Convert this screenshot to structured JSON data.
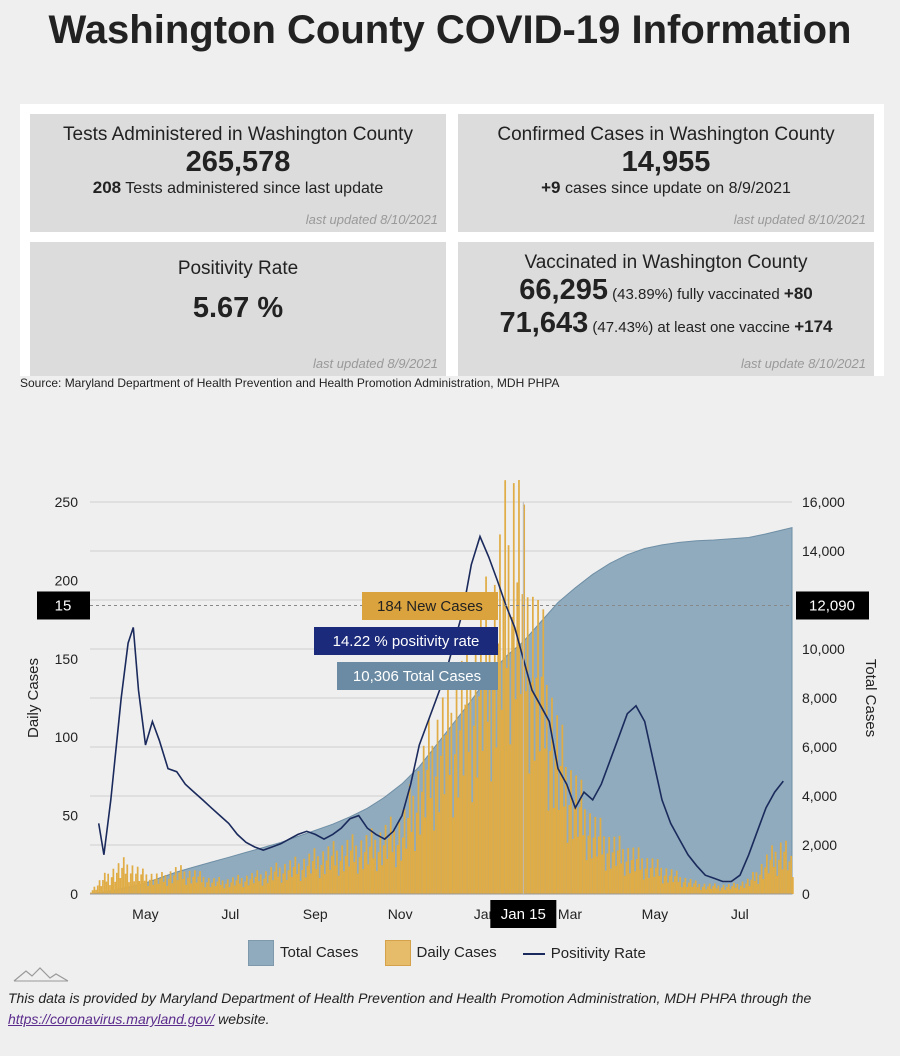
{
  "title": "Washington County COVID-19 Information",
  "cards": {
    "tests": {
      "title": "Tests Administered in Washington County",
      "value": "265,578",
      "delta": "208",
      "delta_text": "Tests administered since last update",
      "updated": "last updated 8/10/2021"
    },
    "cases": {
      "title": "Confirmed Cases in Washington County",
      "value": "14,955",
      "delta": "+9",
      "delta_text": "cases since update on 8/9/2021",
      "updated": "last updated 8/10/2021"
    },
    "positivity": {
      "title": "Positivity Rate",
      "value": "5.67 %",
      "updated": "last updated 8/9/2021"
    },
    "vaccinated": {
      "title": "Vaccinated in Washington County",
      "full_value": "66,295",
      "full_pct": "(43.89%)",
      "full_text": "fully vaccinated",
      "full_delta": "+80",
      "one_value": "71,643",
      "one_pct": "(47.43%)",
      "one_text": "at least one vaccine",
      "one_delta": "+174",
      "updated": "last update 8/10/2021"
    }
  },
  "source": "Source: Maryland Department of Health Prevention and Health Promotion Administration, MDH PHPA",
  "chart_data": {
    "type": "line",
    "ylabel": "Daily Cases",
    "y2label": "Total Cases",
    "ylim": [
      0,
      250
    ],
    "y2lim": [
      0,
      16000
    ],
    "y_ticks": [
      "0",
      "50",
      "100",
      "150",
      "200",
      "250"
    ],
    "y2_ticks": [
      "0",
      "2,000",
      "4,000",
      "6,000",
      "8,000",
      "10,000",
      "12,000",
      "14,000",
      "16,000"
    ],
    "x_ticks": [
      "May",
      "Jul",
      "Sep",
      "Nov",
      "Jan",
      "Mar",
      "May",
      "Jul"
    ],
    "legend": [
      "Total Cases",
      "Daily Cases",
      "Positivity Rate"
    ],
    "legend_placement": "bottom",
    "grid": true,
    "colors": {
      "total": "#8fabbd",
      "daily": "#e0ac45",
      "positivity": "#1b2a5c"
    },
    "series": [
      {
        "name": "Total Cases",
        "type": "area",
        "points": [
          [
            0,
            0
          ],
          [
            10,
            100
          ],
          [
            20,
            250
          ],
          [
            30,
            400
          ],
          [
            40,
            650
          ],
          [
            50,
            900
          ],
          [
            60,
            1100
          ],
          [
            70,
            1300
          ],
          [
            80,
            1500
          ],
          [
            90,
            1700
          ],
          [
            100,
            1900
          ],
          [
            110,
            2100
          ],
          [
            120,
            2350
          ],
          [
            130,
            2600
          ],
          [
            140,
            2850
          ],
          [
            150,
            3150
          ],
          [
            160,
            3500
          ],
          [
            170,
            3950
          ],
          [
            180,
            4500
          ],
          [
            190,
            5200
          ],
          [
            200,
            6100
          ],
          [
            210,
            7000
          ],
          [
            220,
            7900
          ],
          [
            230,
            8900
          ],
          [
            240,
            9700
          ],
          [
            250,
            10300
          ],
          [
            260,
            11100
          ],
          [
            270,
            11900
          ],
          [
            280,
            12500
          ],
          [
            290,
            13050
          ],
          [
            300,
            13500
          ],
          [
            310,
            13850
          ],
          [
            320,
            14100
          ],
          [
            330,
            14250
          ],
          [
            340,
            14350
          ],
          [
            350,
            14420
          ],
          [
            360,
            14450
          ],
          [
            370,
            14500
          ],
          [
            380,
            14550
          ],
          [
            390,
            14700
          ],
          [
            405,
            14955
          ]
        ]
      },
      {
        "name": "Daily Cases",
        "type": "bar",
        "points": [
          [
            0,
            2
          ],
          [
            10,
            12
          ],
          [
            20,
            18
          ],
          [
            30,
            12
          ],
          [
            40,
            10
          ],
          [
            50,
            14
          ],
          [
            60,
            12
          ],
          [
            70,
            8
          ],
          [
            80,
            8
          ],
          [
            90,
            10
          ],
          [
            100,
            12
          ],
          [
            110,
            16
          ],
          [
            120,
            18
          ],
          [
            130,
            22
          ],
          [
            140,
            25
          ],
          [
            150,
            28
          ],
          [
            160,
            30
          ],
          [
            170,
            35
          ],
          [
            180,
            40
          ],
          [
            190,
            70
          ],
          [
            200,
            95
          ],
          [
            210,
            110
          ],
          [
            220,
            130
          ],
          [
            230,
            155
          ],
          [
            240,
            200
          ],
          [
            245,
            230
          ],
          [
            250,
            184
          ],
          [
            260,
            140
          ],
          [
            270,
            85
          ],
          [
            280,
            60
          ],
          [
            290,
            40
          ],
          [
            300,
            30
          ],
          [
            310,
            25
          ],
          [
            320,
            20
          ],
          [
            330,
            15
          ],
          [
            340,
            10
          ],
          [
            350,
            6
          ],
          [
            360,
            5
          ],
          [
            370,
            5
          ],
          [
            380,
            8
          ],
          [
            390,
            20
          ],
          [
            400,
            30
          ],
          [
            405,
            15
          ]
        ]
      },
      {
        "name": "Positivity Rate",
        "type": "line",
        "points": [
          [
            5,
            45
          ],
          [
            8,
            25
          ],
          [
            12,
            60
          ],
          [
            18,
            125
          ],
          [
            22,
            160
          ],
          [
            25,
            170
          ],
          [
            28,
            130
          ],
          [
            32,
            95
          ],
          [
            36,
            110
          ],
          [
            40,
            98
          ],
          [
            45,
            80
          ],
          [
            50,
            78
          ],
          [
            55,
            70
          ],
          [
            60,
            65
          ],
          [
            65,
            60
          ],
          [
            70,
            55
          ],
          [
            75,
            50
          ],
          [
            80,
            45
          ],
          [
            85,
            38
          ],
          [
            90,
            33
          ],
          [
            95,
            30
          ],
          [
            100,
            28
          ],
          [
            105,
            30
          ],
          [
            110,
            32
          ],
          [
            115,
            35
          ],
          [
            120,
            38
          ],
          [
            125,
            40
          ],
          [
            130,
            38
          ],
          [
            135,
            35
          ],
          [
            140,
            38
          ],
          [
            145,
            42
          ],
          [
            150,
            48
          ],
          [
            155,
            50
          ],
          [
            160,
            42
          ],
          [
            165,
            38
          ],
          [
            170,
            35
          ],
          [
            175,
            40
          ],
          [
            180,
            50
          ],
          [
            185,
            70
          ],
          [
            190,
            95
          ],
          [
            195,
            110
          ],
          [
            200,
            125
          ],
          [
            205,
            140
          ],
          [
            210,
            160
          ],
          [
            215,
            180
          ],
          [
            220,
            210
          ],
          [
            225,
            228
          ],
          [
            230,
            215
          ],
          [
            235,
            200
          ],
          [
            240,
            184
          ],
          [
            245,
            170
          ],
          [
            250,
            150
          ],
          [
            255,
            130
          ],
          [
            260,
            120
          ],
          [
            265,
            110
          ],
          [
            270,
            80
          ],
          [
            275,
            70
          ],
          [
            280,
            55
          ],
          [
            285,
            65
          ],
          [
            290,
            60
          ],
          [
            295,
            70
          ],
          [
            300,
            85
          ],
          [
            305,
            100
          ],
          [
            310,
            115
          ],
          [
            315,
            120
          ],
          [
            320,
            110
          ],
          [
            325,
            85
          ],
          [
            330,
            60
          ],
          [
            335,
            45
          ],
          [
            340,
            35
          ],
          [
            345,
            25
          ],
          [
            350,
            18
          ],
          [
            355,
            12
          ],
          [
            360,
            10
          ],
          [
            365,
            8
          ],
          [
            370,
            8
          ],
          [
            375,
            12
          ],
          [
            380,
            25
          ],
          [
            385,
            40
          ],
          [
            390,
            55
          ],
          [
            395,
            65
          ],
          [
            400,
            72
          ]
        ]
      }
    ],
    "annotations": {
      "hover_date": "Jan 15",
      "left_marker": "15",
      "right_marker": "12,090",
      "new_cases": "184 New Cases",
      "positivity": "14.22 % positivity rate",
      "total": "10,306 Total Cases"
    }
  },
  "footnote": {
    "text_before": "This data is provided by Maryland Department of Health Prevention and Health Promotion Administration, MDH PHPA through the ",
    "link": "https://coronavirus.maryland.gov/",
    "text_after": " website."
  }
}
